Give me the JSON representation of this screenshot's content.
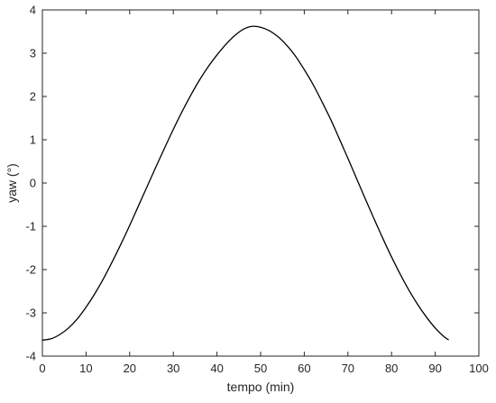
{
  "chart_data": {
    "type": "line",
    "title": "",
    "xlabel": "tempo (min)",
    "ylabel": "yaw (°)",
    "xlim": [
      0,
      100
    ],
    "ylim": [
      -4,
      4
    ],
    "xticks": [
      0,
      10,
      20,
      30,
      40,
      50,
      60,
      70,
      80,
      90,
      100
    ],
    "yticks": [
      -4,
      -3,
      -2,
      -1,
      0,
      1,
      2,
      3,
      4
    ],
    "grid": false,
    "legend": "none",
    "line_color": "#000000",
    "axis_color": "#262626",
    "series": [
      {
        "x": [
          0,
          2,
          4,
          6,
          8,
          10,
          12,
          14,
          16,
          18,
          20,
          22,
          24,
          26,
          28,
          30,
          32,
          34,
          36,
          38,
          40,
          42,
          44,
          46,
          48,
          50,
          52,
          54,
          56,
          58,
          60,
          62,
          64,
          66,
          68,
          70,
          72,
          74,
          76,
          78,
          80,
          82,
          84,
          86,
          88,
          90,
          92,
          93
        ],
        "y": [
          -3.63,
          -3.6,
          -3.5,
          -3.35,
          -3.14,
          -2.87,
          -2.56,
          -2.21,
          -1.82,
          -1.41,
          -0.98,
          -0.53,
          -0.08,
          0.37,
          0.81,
          1.24,
          1.65,
          2.03,
          2.38,
          2.69,
          2.96,
          3.2,
          3.4,
          3.55,
          3.62,
          3.6,
          3.52,
          3.38,
          3.18,
          2.93,
          2.62,
          2.28,
          1.89,
          1.48,
          1.03,
          0.57,
          0.1,
          -0.37,
          -0.83,
          -1.28,
          -1.71,
          -2.11,
          -2.48,
          -2.81,
          -3.1,
          -3.35,
          -3.55,
          -3.62
        ]
      }
    ]
  }
}
